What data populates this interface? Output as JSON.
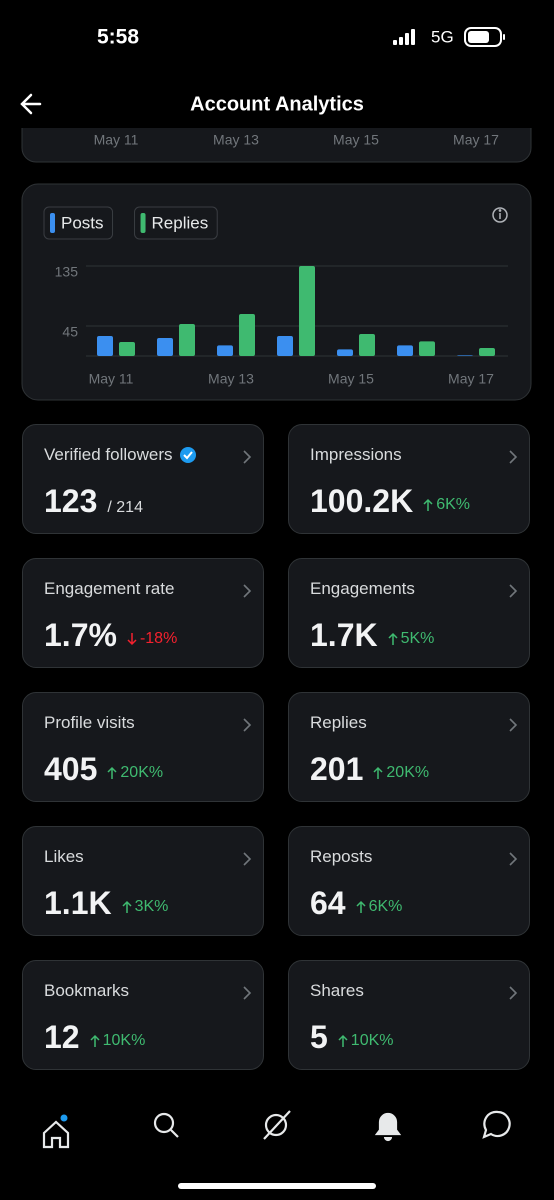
{
  "status_bar": {
    "time": "5:58",
    "network": "5G"
  },
  "header": {
    "title": "Account Analytics"
  },
  "previous_chart": {
    "x_labels": [
      "May 11",
      "May 13",
      "May 15",
      "May 17"
    ]
  },
  "chart_data": {
    "type": "bar",
    "categories": [
      "May 11",
      null,
      "May 13",
      null,
      "May 15",
      null,
      "May 17"
    ],
    "series": [
      {
        "name": "Posts",
        "color": "#3b8ff0",
        "values": [
          30,
          27,
          16,
          30,
          10,
          16,
          1
        ]
      },
      {
        "name": "Replies",
        "color": "#3fba70",
        "values": [
          21,
          48,
          63,
          135,
          33,
          22,
          12
        ]
      }
    ],
    "ylim": [
      0,
      135
    ],
    "yticks": [
      45,
      135
    ],
    "grid": true
  },
  "cards": [
    {
      "title": "Verified followers",
      "value": "123",
      "total": "/ 214"
    },
    {
      "title": "Impressions",
      "value": "100.2K",
      "change": "6K%"
    },
    {
      "title": "Engagement rate",
      "value": "1.7%",
      "change": "-18%"
    },
    {
      "title": "Engagements",
      "value": "1.7K",
      "change": "5K%"
    },
    {
      "title": "Profile visits",
      "value": "405",
      "change": "20K%"
    },
    {
      "title": "Replies",
      "value": "201",
      "change": "20K%"
    },
    {
      "title": "Likes",
      "value": "1.1K",
      "change": "3K%"
    },
    {
      "title": "Reposts",
      "value": "64",
      "change": "6K%"
    },
    {
      "title": "Bookmarks",
      "value": "12",
      "change": "10K%"
    },
    {
      "title": "Shares",
      "value": "5",
      "change": "10K%"
    }
  ]
}
